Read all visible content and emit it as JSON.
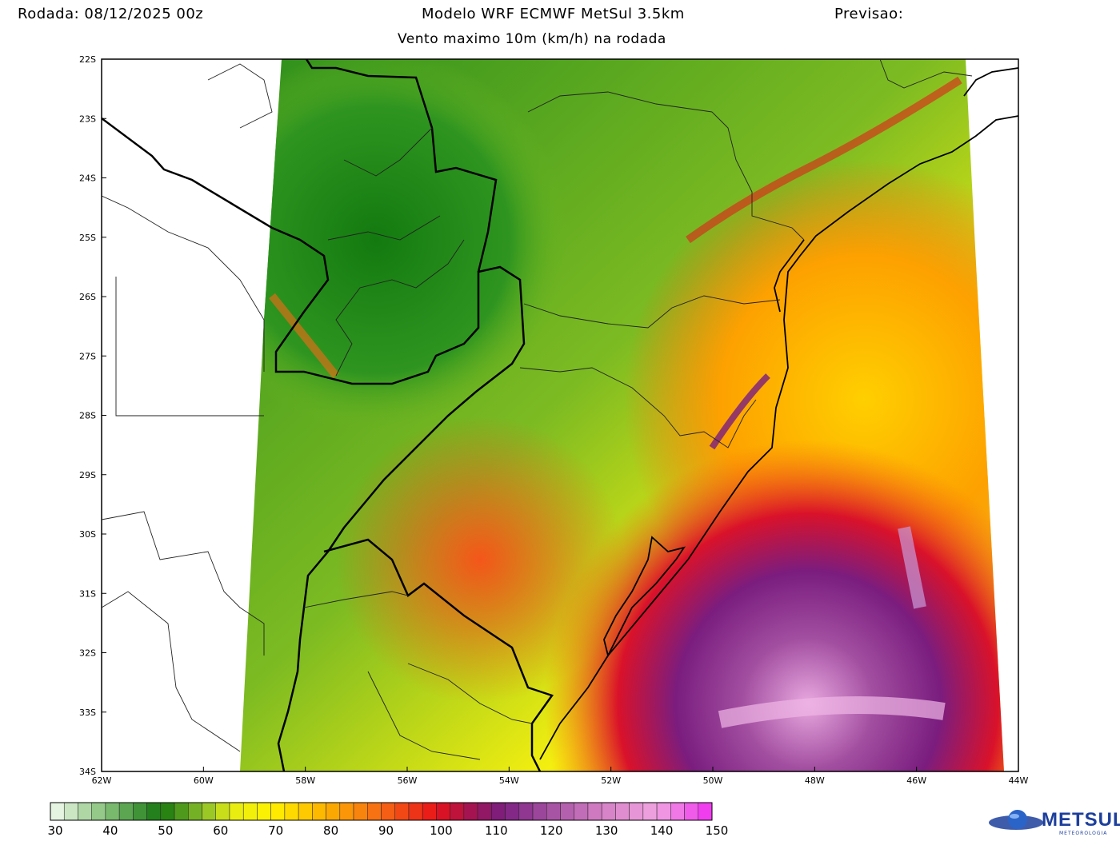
{
  "header": {
    "run": "Rodada: 08/12/2025 00z",
    "model": "Modelo WRF ECMWF MetSul 3.5km",
    "forecast": "Previsao:",
    "subtitle": "Vento maximo 10m (km/h) na rodada"
  },
  "axes": {
    "lat_labels": [
      "22S",
      "23S",
      "24S",
      "25S",
      "26S",
      "27S",
      "28S",
      "29S",
      "30S",
      "31S",
      "32S",
      "33S",
      "34S"
    ],
    "lon_labels": [
      "62W",
      "60W",
      "58W",
      "56W",
      "54W",
      "52W",
      "50W",
      "48W",
      "46W",
      "44W"
    ]
  },
  "colorbar": {
    "labels": [
      "30",
      "40",
      "50",
      "60",
      "70",
      "80",
      "90",
      "100",
      "110",
      "120",
      "130",
      "140",
      "150"
    ],
    "min": 30,
    "max": 150,
    "step": 2.5,
    "stops": [
      {
        "v": 30,
        "c": "#f2fbef"
      },
      {
        "v": 40,
        "c": "#86c27a"
      },
      {
        "v": 50,
        "c": "#16770f"
      },
      {
        "v": 58,
        "c": "#8fc12a"
      },
      {
        "v": 63,
        "c": "#e6ee12"
      },
      {
        "v": 70,
        "c": "#fff200"
      },
      {
        "v": 80,
        "c": "#fdb100"
      },
      {
        "v": 90,
        "c": "#f66914"
      },
      {
        "v": 100,
        "c": "#e8121a"
      },
      {
        "v": 106,
        "c": "#a7144f"
      },
      {
        "v": 112,
        "c": "#7a1d7f"
      },
      {
        "v": 120,
        "c": "#a24ea0"
      },
      {
        "v": 130,
        "c": "#d57fc5"
      },
      {
        "v": 140,
        "c": "#f0a3e0"
      },
      {
        "v": 150,
        "c": "#f030f0"
      }
    ]
  },
  "logo": {
    "name": "METSUL",
    "sub": "METEOROLOGIA"
  }
}
